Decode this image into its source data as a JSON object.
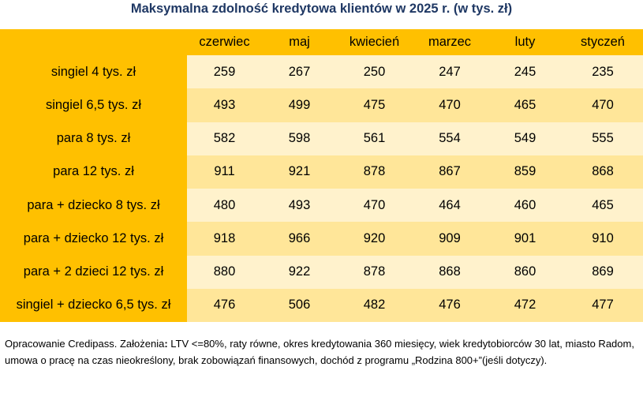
{
  "title": "Maksymalna zdolność kredytowa klientów w 2025 r. (w tys. zł)",
  "columns": [
    "czerwiec",
    "maj",
    "kwiecień",
    "marzec",
    "luty",
    "styczeń"
  ],
  "rows": [
    {
      "label": "singiel 4 tys. zł",
      "values": [
        "259",
        "267",
        "250",
        "247",
        "245",
        "235"
      ]
    },
    {
      "label": "singiel 6,5 tys. zł",
      "values": [
        "493",
        "499",
        "475",
        "470",
        "465",
        "470"
      ]
    },
    {
      "label": "para 8 tys. zł",
      "values": [
        "582",
        "598",
        "561",
        "554",
        "549",
        "555"
      ]
    },
    {
      "label": "para 12 tys. zł",
      "values": [
        "911",
        "921",
        "878",
        "867",
        "859",
        "868"
      ]
    },
    {
      "label": "para + dziecko 8 tys. zł",
      "values": [
        "480",
        "493",
        "470",
        "464",
        "460",
        "465"
      ]
    },
    {
      "label": "para + dziecko 12 tys. zł",
      "values": [
        "918",
        "966",
        "920",
        "909",
        "901",
        "910"
      ]
    },
    {
      "label": "para + 2 dzieci 12 tys. zł",
      "values": [
        "880",
        "922",
        "878",
        "868",
        "860",
        "869"
      ]
    },
    {
      "label": "singiel + dziecko 6,5 tys. zł",
      "values": [
        "476",
        "506",
        "482",
        "476",
        "472",
        "477"
      ]
    }
  ],
  "footnote": {
    "prefix": "Opracowanie Credipass. Założenia",
    "colon": ":",
    "text": " LTV <=80%, raty równe, okres kredytowania 360 miesięcy, wiek kredytobiorców 30 lat, miasto Radom, umowa o pracę na czas nieokreślony, brak zobowiązań finansowych,  dochód z programu „Rodzina 800+”(jeśli dotyczy)."
  },
  "colors": {
    "header_fill": "#ffc000",
    "row_fill_light": "#fff2cc",
    "row_fill_dark": "#ffe699",
    "title_text": "#1f3864"
  }
}
